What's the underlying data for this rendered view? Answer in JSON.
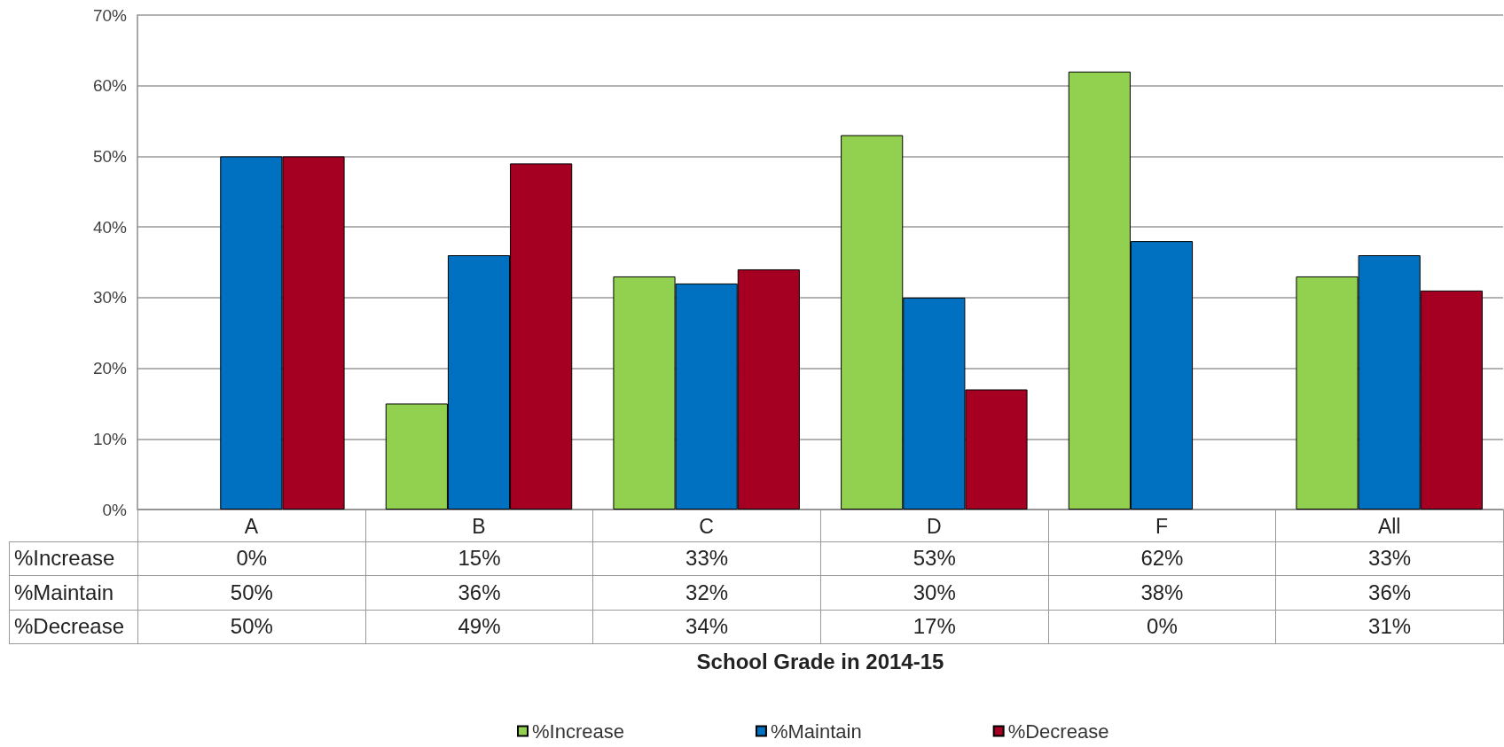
{
  "chart_data": {
    "type": "bar",
    "annotations": [
      "School Grade in 2014-15"
    ],
    "categories": [
      "A",
      "B",
      "C",
      "D",
      "F",
      "All"
    ],
    "series": [
      {
        "name": "%Increase",
        "color": "#92d050",
        "values": [
          0,
          15,
          33,
          53,
          62,
          33
        ],
        "value_labels": [
          "0%",
          "15%",
          "33%",
          "53%",
          "62%",
          "33%"
        ]
      },
      {
        "name": "%Maintain",
        "color": "#0070c0",
        "values": [
          50,
          36,
          32,
          30,
          38,
          36
        ],
        "value_labels": [
          "50%",
          "36%",
          "32%",
          "30%",
          "38%",
          "36%"
        ]
      },
      {
        "name": "%Decrease",
        "color": "#a50021",
        "values": [
          50,
          49,
          34,
          17,
          0,
          31
        ],
        "value_labels": [
          "50%",
          "49%",
          "34%",
          "17%",
          "0%",
          "31%"
        ]
      }
    ],
    "ylim": [
      0,
      70
    ],
    "yticks": [
      {
        "value": 0,
        "label": "0%"
      },
      {
        "value": 10,
        "label": "10%"
      },
      {
        "value": 20,
        "label": "20%"
      },
      {
        "value": 30,
        "label": "30%"
      },
      {
        "value": 40,
        "label": "40%"
      },
      {
        "value": 50,
        "label": "50%"
      },
      {
        "value": 60,
        "label": "60%"
      },
      {
        "value": 70,
        "label": "70%"
      }
    ],
    "grid": "y",
    "legend": "bottom"
  }
}
